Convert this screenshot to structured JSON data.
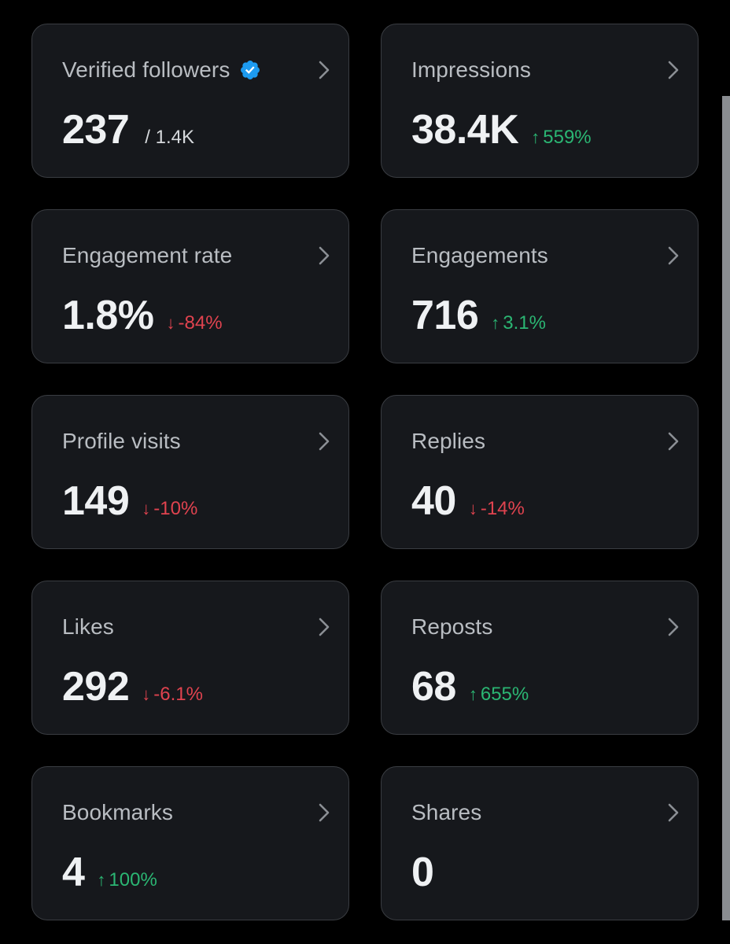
{
  "colors": {
    "card_bg": "#16181c",
    "card_border": "#3a3d42",
    "up": "#2bb673",
    "down": "#e0434f",
    "verified": "#1d9bf0"
  },
  "cards": [
    {
      "title": "Verified followers",
      "value": "237",
      "denominator": "/ 1.4K",
      "verified_icon": "verified-badge-icon"
    },
    {
      "title": "Impressions",
      "value": "38.4K",
      "delta": {
        "dir": "up",
        "arrow": "↑",
        "text": "559%"
      }
    },
    {
      "title": "Engagement rate",
      "value": "1.8%",
      "delta": {
        "dir": "down",
        "arrow": "↓",
        "text": "-84%"
      }
    },
    {
      "title": "Engagements",
      "value": "716",
      "delta": {
        "dir": "up",
        "arrow": "↑",
        "text": "3.1%"
      }
    },
    {
      "title": "Profile visits",
      "value": "149",
      "delta": {
        "dir": "down",
        "arrow": "↓",
        "text": "-10%"
      }
    },
    {
      "title": "Replies",
      "value": "40",
      "delta": {
        "dir": "down",
        "arrow": "↓",
        "text": "-14%"
      }
    },
    {
      "title": "Likes",
      "value": "292",
      "delta": {
        "dir": "down",
        "arrow": "↓",
        "text": "-6.1%"
      }
    },
    {
      "title": "Reposts",
      "value": "68",
      "delta": {
        "dir": "up",
        "arrow": "↑",
        "text": "655%"
      }
    },
    {
      "title": "Bookmarks",
      "value": "4",
      "delta": {
        "dir": "up",
        "arrow": "↑",
        "text": "100%"
      }
    },
    {
      "title": "Shares",
      "value": "0"
    }
  ]
}
